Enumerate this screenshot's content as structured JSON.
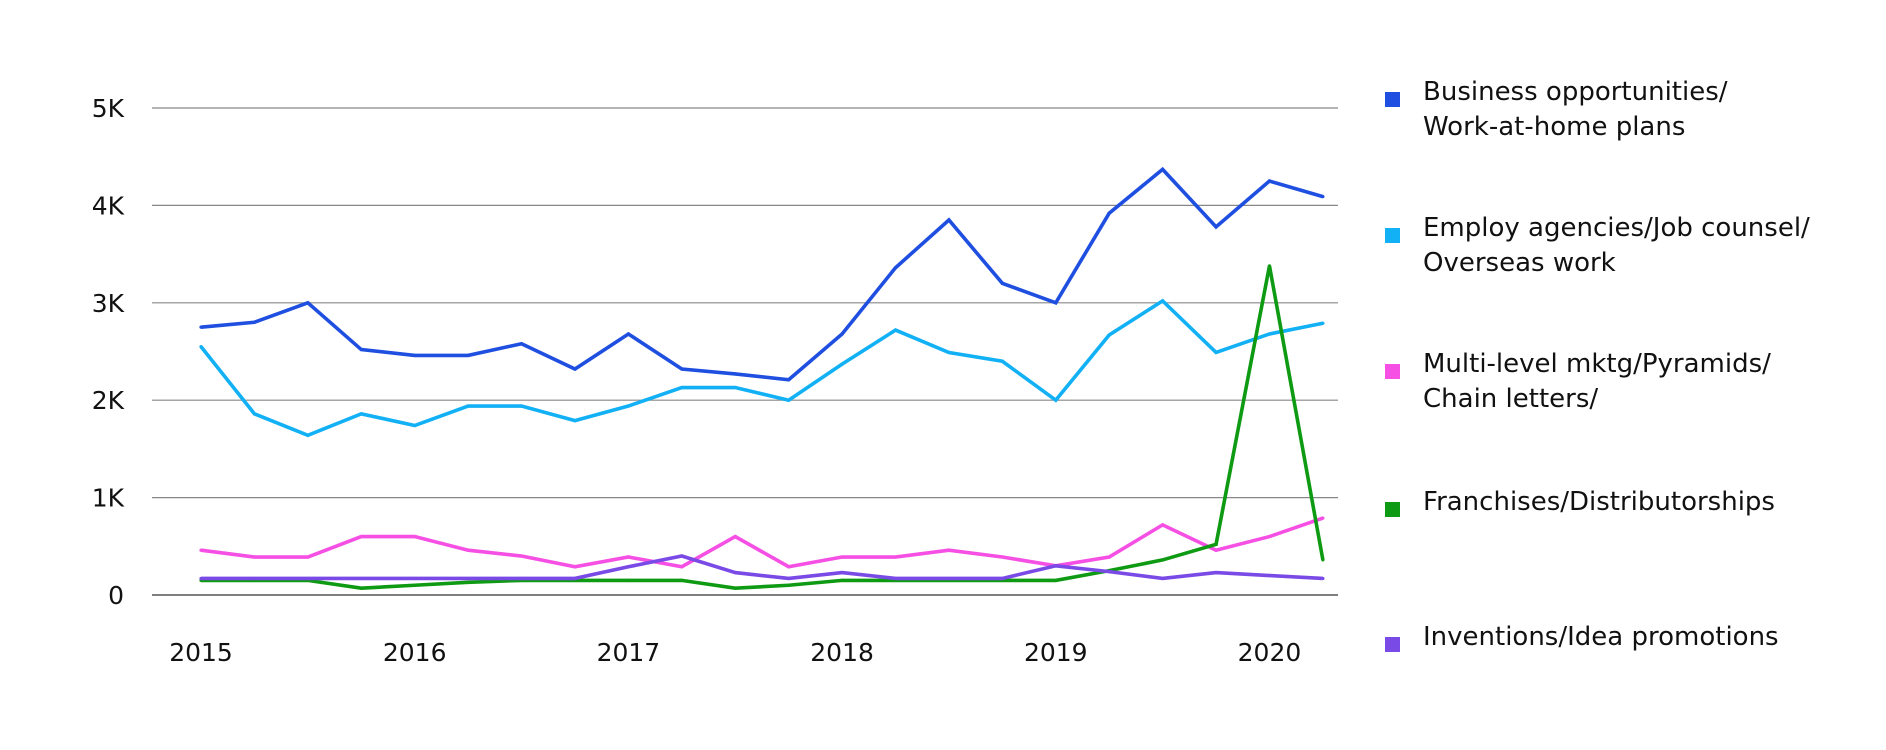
{
  "chart_data": {
    "type": "line",
    "x": [
      2015.0,
      2015.25,
      2015.5,
      2015.75,
      2016.0,
      2016.25,
      2016.5,
      2016.75,
      2017.0,
      2017.25,
      2017.5,
      2017.75,
      2018.0,
      2018.25,
      2018.5,
      2018.75,
      2019.0,
      2019.25,
      2019.5,
      2019.75,
      2020.0,
      2020.25
    ],
    "x_ticks": [
      "2015",
      "2016",
      "2017",
      "2018",
      "2019",
      "2020"
    ],
    "y_ticks": [
      "0",
      "1K",
      "2K",
      "3K",
      "4K",
      "5K"
    ],
    "ylim": [
      0,
      5000
    ],
    "grid": "horizontal",
    "legend_position": "right",
    "series": [
      {
        "name_lines": [
          "Business opportunities/",
          "Work-at-home plans"
        ],
        "color": "#1f4fe0",
        "values": [
          2750,
          2800,
          3000,
          2520,
          2460,
          2460,
          2580,
          2320,
          2680,
          2320,
          2270,
          2210,
          2680,
          3360,
          3850,
          3200,
          3000,
          3920,
          4370,
          3780,
          4250,
          4090
        ]
      },
      {
        "name_lines": [
          "Employ agencies/Job counsel/",
          "Overseas work"
        ],
        "color": "#12b0f5",
        "values": [
          2550,
          1860,
          1640,
          1860,
          1740,
          1940,
          1940,
          1790,
          1940,
          2130,
          2130,
          2000,
          2370,
          2720,
          2490,
          2400,
          2000,
          2670,
          3020,
          2490,
          2680,
          2790
        ]
      },
      {
        "name_lines": [
          "Multi-level mktg/Pyramids/",
          "Chain letters/"
        ],
        "color": "#f54fe4",
        "values": [
          460,
          390,
          390,
          600,
          600,
          460,
          400,
          290,
          390,
          290,
          600,
          290,
          390,
          390,
          460,
          390,
          300,
          390,
          720,
          460,
          600,
          790
        ]
      },
      {
        "name_lines": [
          "Franchises/Distributorships"
        ],
        "color": "#0e9a12",
        "values": [
          150,
          150,
          150,
          70,
          100,
          130,
          150,
          150,
          150,
          150,
          70,
          100,
          150,
          150,
          150,
          150,
          150,
          250,
          360,
          520,
          3380,
          360
        ]
      },
      {
        "name_lines": [
          "Inventions/Idea promotions"
        ],
        "color": "#7a4ae6",
        "values": [
          170,
          170,
          170,
          170,
          170,
          170,
          170,
          170,
          290,
          400,
          230,
          170,
          230,
          170,
          170,
          170,
          300,
          240,
          170,
          230,
          200,
          170
        ]
      }
    ]
  }
}
